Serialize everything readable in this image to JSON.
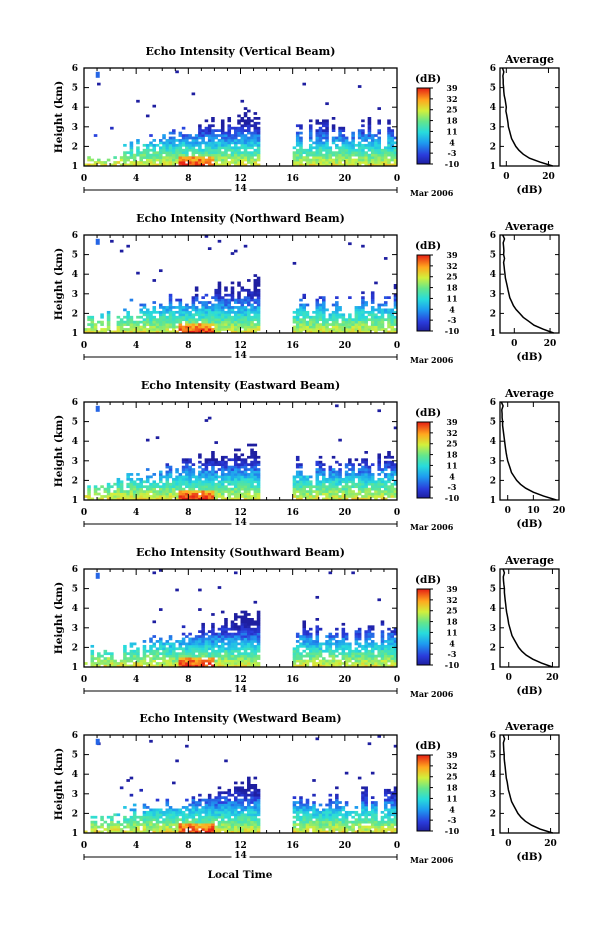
{
  "colorbar": {
    "unit_label": "(dB)",
    "tick_labels": [
      "39",
      "32",
      "25",
      "18",
      "11",
      "4",
      "-3",
      "-10"
    ],
    "range": [
      -10,
      39
    ]
  },
  "shared": {
    "ylabel": "Height (km)",
    "height_ticks": [
      "1",
      "2",
      "3",
      "4",
      "5",
      "6"
    ],
    "time_ticks": [
      "0",
      "4",
      "8",
      "12",
      "16",
      "20",
      "0"
    ],
    "day_label": "14",
    "month_label": "Mar 2006",
    "xlabel": "Local Time",
    "avg_title": "Average",
    "avg_xlabel": "(dB)"
  },
  "chart_data": [
    {
      "type": "heatmap",
      "title": "Echo Intensity (Vertical Beam)",
      "avg_x_ticks": [
        "0",
        "20"
      ],
      "avg_xlim": [
        -3,
        25
      ],
      "profile": [
        [
          1.0,
          22
        ],
        [
          1.2,
          16
        ],
        [
          1.4,
          11
        ],
        [
          1.6,
          8
        ],
        [
          1.8,
          6
        ],
        [
          2.0,
          4.5
        ],
        [
          2.2,
          3.5
        ],
        [
          2.4,
          2.5
        ],
        [
          2.6,
          2
        ],
        [
          2.8,
          1.5
        ],
        [
          3.0,
          1
        ],
        [
          3.2,
          0.8
        ],
        [
          3.4,
          0.5
        ],
        [
          3.6,
          0.2
        ],
        [
          3.8,
          -0.2
        ],
        [
          4.0,
          0
        ],
        [
          4.2,
          -0.3
        ],
        [
          4.4,
          -0.6
        ],
        [
          4.6,
          -1
        ],
        [
          4.8,
          -1.2
        ],
        [
          5.0,
          -1.3
        ],
        [
          5.2,
          -1.5
        ],
        [
          5.4,
          -1.5
        ],
        [
          5.6,
          -1.6
        ],
        [
          5.8,
          -1.2
        ],
        [
          6.0,
          -1.8
        ]
      ],
      "ylim": [
        1,
        6
      ],
      "xlim_hours": [
        0,
        24
      ]
    },
    {
      "type": "heatmap",
      "title": "Echo Intensity (Northward Beam)",
      "avg_x_ticks": [
        "0",
        "20"
      ],
      "avg_xlim": [
        -8,
        25
      ],
      "profile": [
        [
          1.0,
          22
        ],
        [
          1.2,
          16
        ],
        [
          1.4,
          11
        ],
        [
          1.6,
          8
        ],
        [
          1.8,
          5
        ],
        [
          2.0,
          3
        ],
        [
          2.2,
          1
        ],
        [
          2.4,
          -0.5
        ],
        [
          2.6,
          -1.5
        ],
        [
          2.8,
          -2.5
        ],
        [
          3.0,
          -3
        ],
        [
          3.2,
          -3.5
        ],
        [
          3.4,
          -4
        ],
        [
          3.6,
          -4.5
        ],
        [
          3.8,
          -5
        ],
        [
          4.0,
          -5.2
        ],
        [
          4.2,
          -5.5
        ],
        [
          4.4,
          -5.7
        ],
        [
          4.6,
          -6
        ],
        [
          4.8,
          -5.5
        ],
        [
          5.0,
          -6
        ],
        [
          5.2,
          -5.8
        ],
        [
          5.4,
          -6
        ],
        [
          5.6,
          -6.2
        ],
        [
          5.8,
          -5.5
        ],
        [
          6.0,
          -6.5
        ]
      ],
      "ylim": [
        1,
        6
      ],
      "xlim_hours": [
        0,
        24
      ]
    },
    {
      "type": "heatmap",
      "title": "Echo Intensity (Eastward Beam)",
      "avg_x_ticks": [
        "0",
        "10",
        "20"
      ],
      "avg_xlim": [
        -3,
        20
      ],
      "profile": [
        [
          1.0,
          19
        ],
        [
          1.2,
          14
        ],
        [
          1.4,
          10
        ],
        [
          1.6,
          7
        ],
        [
          1.8,
          5
        ],
        [
          2.0,
          3.5
        ],
        [
          2.2,
          2.5
        ],
        [
          2.4,
          1.5
        ],
        [
          2.6,
          1
        ],
        [
          2.8,
          0.5
        ],
        [
          3.0,
          0
        ],
        [
          3.2,
          -0.3
        ],
        [
          3.4,
          -0.6
        ],
        [
          3.6,
          -0.8
        ],
        [
          3.8,
          -1
        ],
        [
          4.0,
          -1.2
        ],
        [
          4.2,
          -1.4
        ],
        [
          4.4,
          -1.6
        ],
        [
          4.6,
          -1.8
        ],
        [
          4.8,
          -2
        ],
        [
          5.0,
          -2
        ],
        [
          5.2,
          -2.2
        ],
        [
          5.4,
          -2.2
        ],
        [
          5.6,
          -2.3
        ],
        [
          5.8,
          -1.8
        ],
        [
          6.0,
          -2.5
        ]
      ],
      "ylim": [
        1,
        6
      ],
      "xlim_hours": [
        0,
        24
      ]
    },
    {
      "type": "heatmap",
      "title": "Echo Intensity (Southward Beam)",
      "avg_x_ticks": [
        "0",
        "20"
      ],
      "avg_xlim": [
        -4,
        23
      ],
      "profile": [
        [
          1.0,
          20
        ],
        [
          1.2,
          15
        ],
        [
          1.4,
          11
        ],
        [
          1.6,
          8
        ],
        [
          1.8,
          6
        ],
        [
          2.0,
          4.5
        ],
        [
          2.2,
          3.5
        ],
        [
          2.4,
          2.5
        ],
        [
          2.6,
          1.5
        ],
        [
          2.8,
          1
        ],
        [
          3.0,
          0.5
        ],
        [
          3.2,
          0
        ],
        [
          3.4,
          -0.3
        ],
        [
          3.6,
          -0.6
        ],
        [
          3.8,
          -1
        ],
        [
          4.0,
          -1.2
        ],
        [
          4.2,
          -1.4
        ],
        [
          4.4,
          -1.6
        ],
        [
          4.6,
          -1.8
        ],
        [
          4.8,
          -2
        ],
        [
          5.0,
          -2
        ],
        [
          5.2,
          -2.2
        ],
        [
          5.4,
          -2.4
        ],
        [
          5.6,
          -2.5
        ],
        [
          5.8,
          -2
        ],
        [
          6.0,
          -2.6
        ]
      ],
      "ylim": [
        1,
        6
      ],
      "xlim_hours": [
        0,
        24
      ]
    },
    {
      "type": "heatmap",
      "title": "Echo Intensity (Westward Beam)",
      "avg_x_ticks": [
        "0",
        "20"
      ],
      "avg_xlim": [
        -4,
        24
      ],
      "profile": [
        [
          1.0,
          21
        ],
        [
          1.2,
          15
        ],
        [
          1.4,
          11
        ],
        [
          1.6,
          8
        ],
        [
          1.8,
          6
        ],
        [
          2.0,
          4.5
        ],
        [
          2.2,
          3.5
        ],
        [
          2.4,
          2.5
        ],
        [
          2.6,
          1.5
        ],
        [
          2.8,
          1
        ],
        [
          3.0,
          0.5
        ],
        [
          3.2,
          0
        ],
        [
          3.4,
          -0.3
        ],
        [
          3.6,
          -0.6
        ],
        [
          3.8,
          -1
        ],
        [
          4.0,
          -1.2
        ],
        [
          4.2,
          -1.4
        ],
        [
          4.4,
          -1.6
        ],
        [
          4.6,
          -1.8
        ],
        [
          4.8,
          -2
        ],
        [
          5.0,
          -2
        ],
        [
          5.2,
          -2.2
        ],
        [
          5.4,
          -2.3
        ],
        [
          5.6,
          -2.4
        ],
        [
          5.8,
          -1.8
        ],
        [
          6.0,
          -2.5
        ]
      ],
      "ylim": [
        1,
        6
      ],
      "xlim_hours": [
        0,
        24
      ]
    }
  ]
}
